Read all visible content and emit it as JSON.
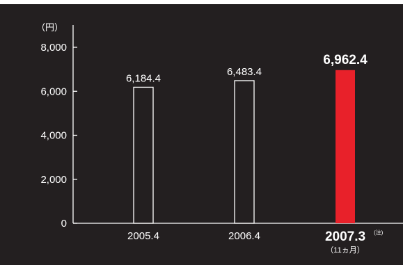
{
  "chart_data": {
    "type": "bar",
    "unit_label": "（円）",
    "categories": [
      "2005.4",
      "2006.4",
      "2007.3"
    ],
    "category_notes": [
      "",
      "",
      "（11ヵ月）"
    ],
    "category_superscripts": [
      "",
      "",
      "(注)"
    ],
    "highlight_index": 2,
    "values": [
      6184.4,
      6483.4,
      6962.4
    ],
    "value_labels": [
      "6,184.4",
      "6,483.4",
      "6,962.4"
    ],
    "yticks": [
      0,
      2000,
      4000,
      6000,
      8000
    ],
    "ytick_labels": [
      "0",
      "2,000",
      "4,000",
      "6,000",
      "8,000"
    ],
    "ylim": [
      0,
      8000
    ],
    "grid": false,
    "colors": {
      "background": "#231f20",
      "outer_background": "#ffffff",
      "axis": "#ffffff",
      "text": "#ffffff",
      "bar_outline": "#ffffff",
      "bar_fill": "#231f20",
      "highlight_fill": "#e8212a"
    }
  }
}
